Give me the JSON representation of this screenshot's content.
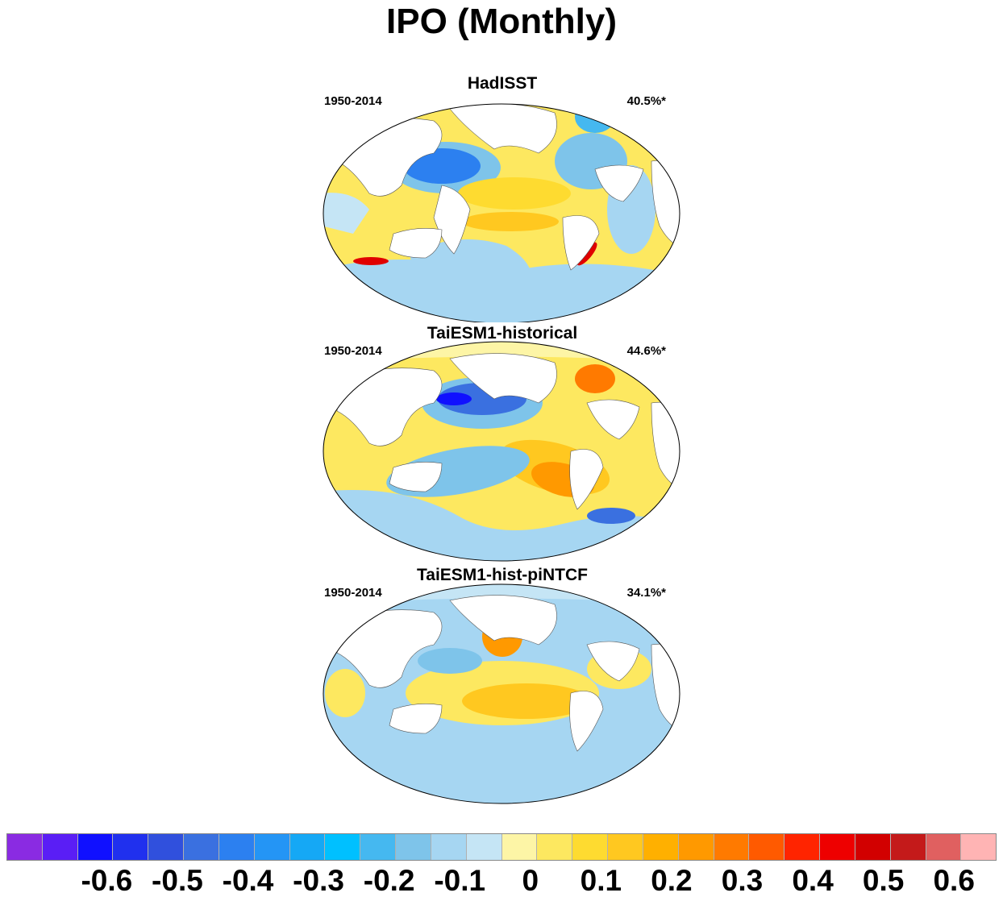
{
  "figure": {
    "title": "IPO (Monthly)"
  },
  "panels": [
    {
      "title": "HadISST",
      "period": "1950-2014",
      "percent": "40.5%*"
    },
    {
      "title": "TaiESM1-historical",
      "period": "1950-2014",
      "percent": "44.6%*"
    },
    {
      "title": "TaiESM1-hist-piNTCF",
      "period": "1950-2014",
      "percent": "34.1%*"
    }
  ],
  "colorbar": {
    "colors": [
      "#8a2be2",
      "#5a1ef5",
      "#1010ff",
      "#2030ee",
      "#3050dd",
      "#3a70e0",
      "#2c80f0",
      "#2495f5",
      "#15a8f5",
      "#00c0ff",
      "#45b8f0",
      "#7ec4ea",
      "#a6d6f2",
      "#c5e5f5",
      "#fdf5a6",
      "#fde860",
      "#fedb30",
      "#ffc820",
      "#ffb000",
      "#ff9900",
      "#ff7a00",
      "#ff5a00",
      "#ff2400",
      "#ee0000",
      "#d20000",
      "#c41a1a",
      "#e06060",
      "#ffb4b4"
    ],
    "tick_labels": [
      "-0.6",
      "-0.5",
      "-0.4",
      "-0.3",
      "-0.2",
      "-0.1",
      "0",
      "0.1",
      "0.2",
      "0.3",
      "0.4",
      "0.5",
      "0.6"
    ]
  }
}
